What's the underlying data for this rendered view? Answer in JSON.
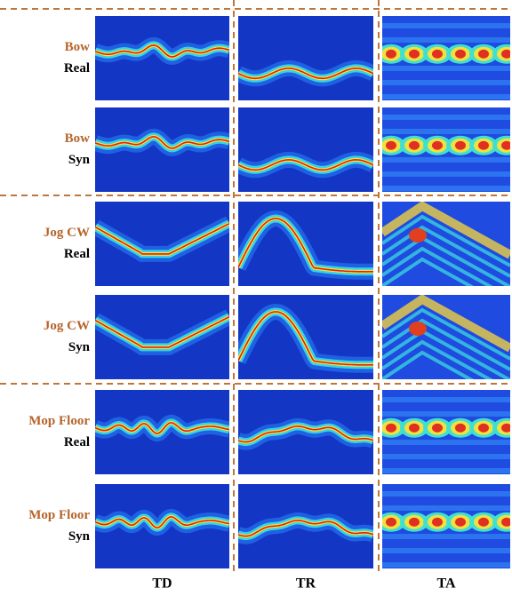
{
  "rows": [
    {
      "activity": "Bow",
      "kind": "Real"
    },
    {
      "activity": "Bow",
      "kind": "Syn"
    },
    {
      "activity": "Jog CW",
      "kind": "Real"
    },
    {
      "activity": "Jog CW",
      "kind": "Syn"
    },
    {
      "activity": "Mop Floor",
      "kind": "Real"
    },
    {
      "activity": "Mop Floor",
      "kind": "Syn"
    }
  ],
  "columns": [
    "TD",
    "TR",
    "TA"
  ]
}
